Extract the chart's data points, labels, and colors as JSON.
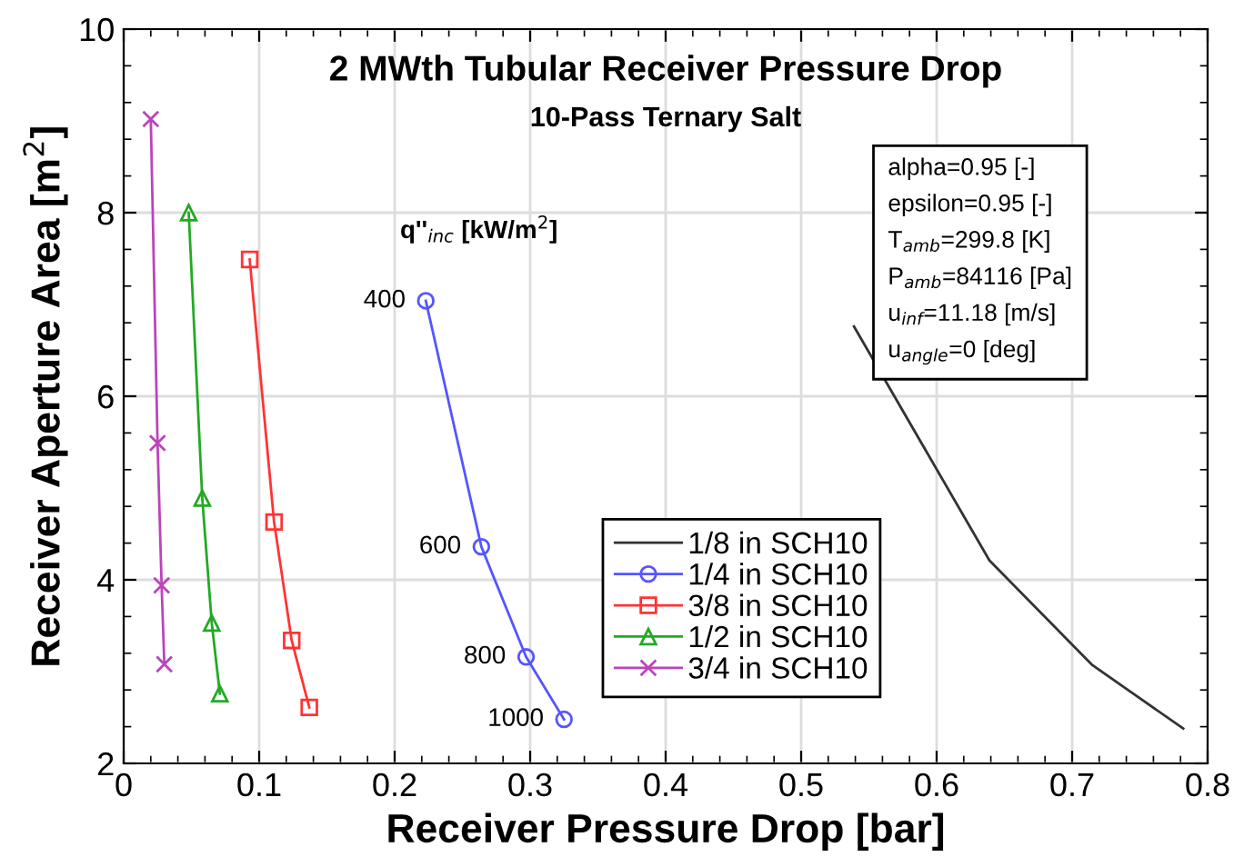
{
  "chart_data": {
    "type": "line",
    "title": "2 MWth Tubular Receiver Pressure Drop",
    "subtitle": "10-Pass Ternary Salt",
    "xlabel": "Receiver Pressure Drop [bar]",
    "ylabel": "Receiver Aperture Area [m$^{2}$]",
    "xlim": [
      0,
      0.8
    ],
    "xticks": [
      0,
      0.1,
      0.2,
      0.3,
      0.4,
      0.5,
      0.6,
      0.7,
      0.8
    ],
    "ylim": [
      2,
      10
    ],
    "yticks": [
      2,
      4,
      6,
      8,
      10
    ],
    "grid": true,
    "legend": "bottom",
    "series": [
      {
        "name": "1/8 in SCH10",
        "color": "#333333",
        "marker": "none",
        "x": [
          0.539,
          0.639,
          0.715,
          0.782
        ],
        "values": [
          6.76,
          4.21,
          3.07,
          2.38
        ]
      },
      {
        "name": "1/4 in SCH10",
        "color": "#5555ff",
        "marker": "circle",
        "x": [
          0.223,
          0.264,
          0.297,
          0.325
        ],
        "values": [
          7.04,
          4.36,
          3.16,
          2.48
        ]
      },
      {
        "name": "3/8 in SCH10",
        "color": "#ff3333",
        "marker": "square",
        "x": [
          0.093,
          0.111,
          0.124,
          0.137
        ],
        "values": [
          7.49,
          4.63,
          3.34,
          2.61
        ]
      },
      {
        "name": "1/2 in SCH10",
        "color": "#22aa22",
        "marker": "triangle",
        "x": [
          0.048,
          0.058,
          0.065,
          0.071
        ],
        "values": [
          8.0,
          4.89,
          3.53,
          2.76
        ]
      },
      {
        "name": "3/4 in SCH10",
        "color": "#bb44bb",
        "marker": "cross",
        "x": [
          0.02,
          0.025,
          0.028,
          0.03
        ],
        "values": [
          9.02,
          5.49,
          3.94,
          3.08
        ]
      }
    ],
    "annotations": [
      {
        "text": "400",
        "x": 0.223,
        "y": 7.04
      },
      {
        "text": "600",
        "x": 0.264,
        "y": 4.36
      },
      {
        "text": "800",
        "x": 0.297,
        "y": 3.16
      },
      {
        "text": "1000",
        "x": 0.325,
        "y": 2.48
      },
      "q''$_{inc}$ [kW/m$^{2}$]",
      "alpha=0.95 [-]",
      "epsilon=0.95 [-]",
      "T$_{amb}$=299.8 [K]",
      "P$_{amb}$=84116 [Pa]",
      "u$_{inf}$=11.18 [m/s]",
      "u$_{angle}$=0 [deg]"
    ]
  }
}
